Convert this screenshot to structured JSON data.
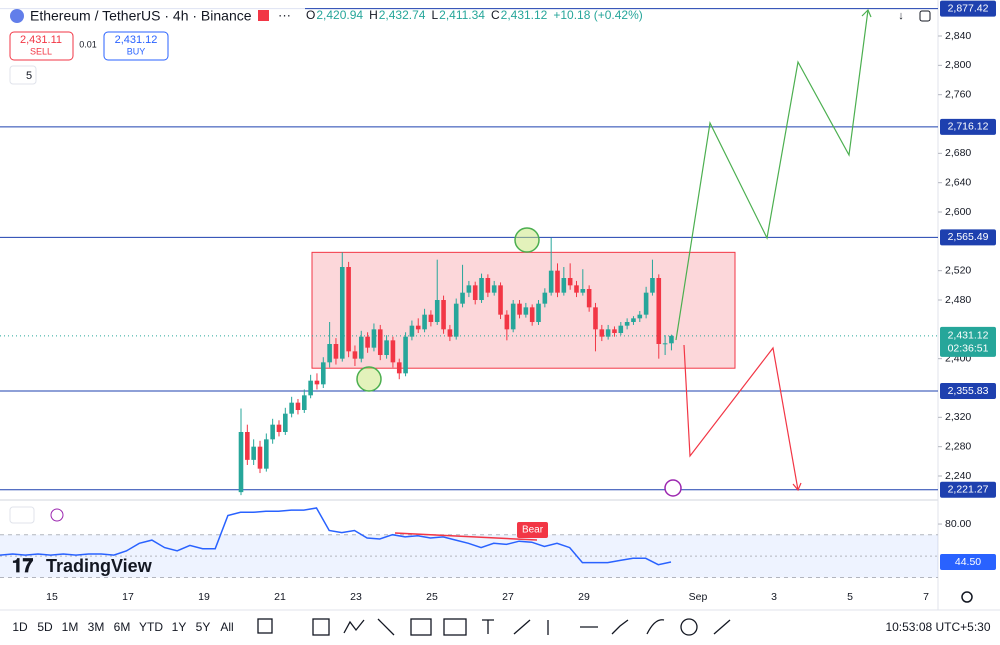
{
  "header": {
    "symbol": "Ethereum / TetherUS · 4h · Binance",
    "ohlc": [
      {
        "k": "O",
        "v": "2,420.94"
      },
      {
        "k": "H",
        "v": "2,432.74"
      },
      {
        "k": "L",
        "v": "2,411.34"
      },
      {
        "k": "C",
        "v": "2,431.12"
      }
    ],
    "change": "+10.18 (+0.42%)",
    "sell": {
      "price": "2,431.11",
      "label": "SELL"
    },
    "spread": "0.01",
    "buy": {
      "price": "2,431.12",
      "label": "BUY"
    },
    "interval": "5"
  },
  "chart_data": {
    "type": "candlestick",
    "up_color": "#26a69a",
    "down_color": "#f23645",
    "open": [
      2218,
      2300,
      2262,
      2280,
      2250,
      2290,
      2310,
      2300,
      2325,
      2340,
      2330,
      2350,
      2370,
      2365,
      2395,
      2420,
      2400,
      2525,
      2410,
      2400,
      2430,
      2415,
      2440,
      2405,
      2425,
      2395,
      2380,
      2430,
      2445,
      2440,
      2460,
      2450,
      2480,
      2440,
      2430,
      2475,
      2490,
      2500,
      2480,
      2510,
      2490,
      2500,
      2460,
      2440,
      2475,
      2460,
      2470,
      2450,
      2475,
      2490,
      2520,
      2490,
      2510,
      2500,
      2490,
      2495,
      2470,
      2440,
      2430,
      2440,
      2435,
      2445,
      2450,
      2455,
      2460,
      2490,
      2510,
      2420,
      2420.94
    ],
    "high": [
      2332,
      2310,
      2290,
      2288,
      2298,
      2318,
      2316,
      2333,
      2348,
      2345,
      2358,
      2378,
      2380,
      2402,
      2450,
      2428,
      2545,
      2532,
      2418,
      2438,
      2436,
      2448,
      2446,
      2432,
      2430,
      2400,
      2436,
      2452,
      2455,
      2468,
      2466,
      2535,
      2486,
      2446,
      2482,
      2528,
      2506,
      2505,
      2516,
      2515,
      2506,
      2504,
      2466,
      2480,
      2480,
      2476,
      2474,
      2480,
      2496,
      2565,
      2530,
      2525,
      2530,
      2506,
      2522,
      2500,
      2476,
      2446,
      2446,
      2444,
      2450,
      2455,
      2458,
      2465,
      2498,
      2535,
      2515,
      2432,
      2432.74
    ],
    "low": [
      2214,
      2255,
      2255,
      2244,
      2246,
      2284,
      2294,
      2296,
      2320,
      2324,
      2326,
      2346,
      2358,
      2360,
      2388,
      2392,
      2396,
      2402,
      2390,
      2395,
      2408,
      2410,
      2398,
      2400,
      2388,
      2372,
      2376,
      2425,
      2435,
      2436,
      2444,
      2446,
      2434,
      2424,
      2426,
      2470,
      2484,
      2474,
      2476,
      2484,
      2486,
      2454,
      2425,
      2436,
      2455,
      2456,
      2445,
      2446,
      2470,
      2486,
      2484,
      2486,
      2494,
      2484,
      2486,
      2464,
      2410,
      2424,
      2426,
      2430,
      2432,
      2440,
      2446,
      2450,
      2455,
      2486,
      2400,
      2405,
      2411.34
    ],
    "close": [
      2300,
      2262,
      2280,
      2250,
      2290,
      2310,
      2300,
      2325,
      2340,
      2330,
      2350,
      2370,
      2365,
      2395,
      2420,
      2400,
      2525,
      2410,
      2400,
      2430,
      2415,
      2440,
      2405,
      2425,
      2395,
      2380,
      2430,
      2445,
      2440,
      2460,
      2450,
      2480,
      2440,
      2430,
      2475,
      2490,
      2500,
      2480,
      2510,
      2490,
      2500,
      2460,
      2440,
      2475,
      2460,
      2470,
      2450,
      2475,
      2490,
      2520,
      2490,
      2510,
      2500,
      2490,
      2495,
      2470,
      2440,
      2430,
      2440,
      2435,
      2445,
      2450,
      2455,
      2460,
      2490,
      2510,
      2420,
      2420.94,
      2431.12
    ],
    "ylim": [
      2210,
      2878.2
    ],
    "yticks": [
      {
        "value": 2240,
        "label": "2,240"
      },
      {
        "value": 2280,
        "label": "2,280"
      },
      {
        "value": 2320,
        "label": "2,320"
      },
      {
        "value": 2400,
        "label": "2,400"
      },
      {
        "value": 2480,
        "label": "2,480"
      },
      {
        "value": 2520,
        "label": "2,520"
      },
      {
        "value": 2600,
        "label": "2,600"
      },
      {
        "value": 2640,
        "label": "2,640"
      },
      {
        "value": 2680,
        "label": "2,680"
      },
      {
        "value": 2760,
        "label": "2,760"
      },
      {
        "value": 2800,
        "label": "2,800"
      },
      {
        "value": 2840,
        "label": "2,840"
      }
    ],
    "levels": [
      {
        "value": 2877.42,
        "label": "2,877.42"
      },
      {
        "value": 2716.12,
        "label": "2,716.12"
      },
      {
        "value": 2565.49,
        "label": "2,565.49"
      },
      {
        "value": 2355.83,
        "label": "2,355.83"
      },
      {
        "value": 2221.27,
        "label": "2,221.27"
      }
    ],
    "level_color": "#1e40af",
    "price_line": {
      "value": 2431.12,
      "label": "2,431.12",
      "countdown": "02:36:51"
    },
    "range_box": {
      "top": 2545,
      "bottom": 2387
    },
    "x_labels": [
      "15",
      "17",
      "19",
      "21",
      "23",
      "25",
      "27",
      "29",
      "Sep",
      "3",
      "5",
      "7"
    ],
    "rsi": {
      "color": "#2962ff",
      "ylim": [
        27.7,
        97.8
      ],
      "yticks": [
        {
          "value": 80,
          "label": "80.00"
        }
      ],
      "band": [
        30,
        70
      ],
      "mid": 50,
      "values": [
        51,
        52,
        51,
        52,
        51,
        52,
        51,
        52,
        52,
        51,
        55,
        62,
        65,
        58,
        55,
        60,
        57,
        57,
        88,
        91,
        91,
        92,
        92,
        93,
        93,
        95,
        74,
        72,
        74,
        67,
        66,
        70,
        68,
        69,
        67,
        68,
        65,
        62,
        58,
        62,
        61,
        64,
        63,
        59,
        62,
        58,
        44,
        44,
        44,
        46,
        48,
        48,
        42,
        44.5
      ],
      "last": {
        "value": 44.5,
        "label": "44.50"
      },
      "annotation": "Bear"
    }
  },
  "watermark": "TradingView",
  "toolbar": {
    "ranges": [
      "1D",
      "5D",
      "1M",
      "3M",
      "6M",
      "YTD",
      "1Y",
      "5Y",
      "All"
    ],
    "clock": "10:53:08 UTC+5:30"
  }
}
